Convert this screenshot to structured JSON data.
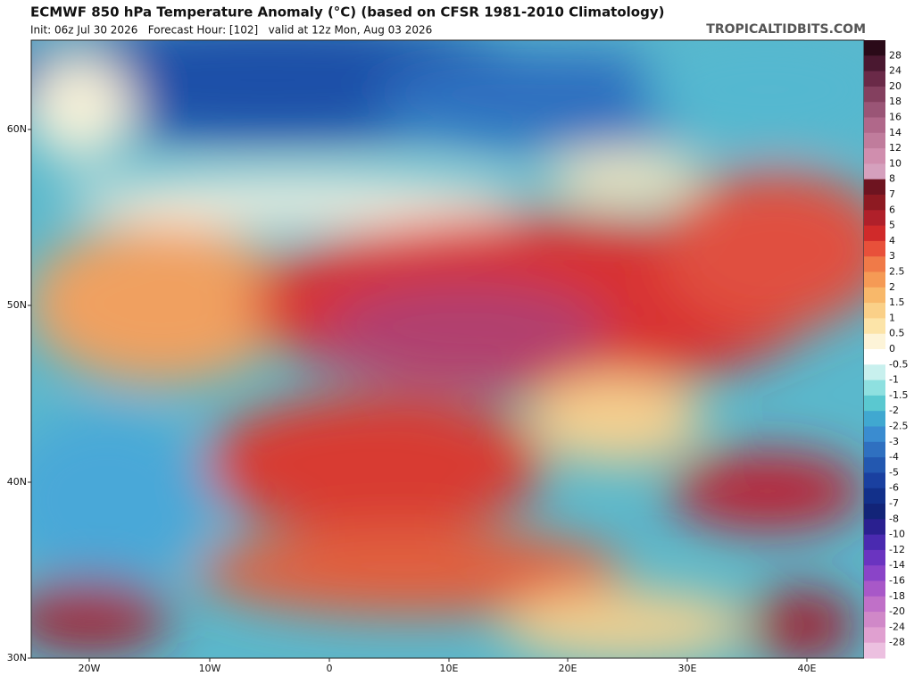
{
  "header": {
    "title": "ECMWF 850 hPa Temperature Anomaly (°C) (based on CFSR 1981-2010 Climatology)",
    "subtitle": "Init: 06z Jul 30 2026   Forecast Hour: [102]   valid at 12z Mon, Aug 03 2026",
    "watermark": "TROPICALTIDBITS.COM"
  },
  "map": {
    "lat_labels": [
      "60N",
      "50N",
      "40N",
      "30N"
    ],
    "lon_labels": [
      "20W",
      "10W",
      "0",
      "10E",
      "20E",
      "30E",
      "40E"
    ]
  },
  "colorbar": {
    "levels": [
      28,
      24,
      20,
      18,
      16,
      14,
      12,
      10,
      8,
      7,
      6,
      5,
      4,
      3,
      2.5,
      2,
      1.5,
      1,
      0.5,
      0,
      -0.5,
      -1,
      -1.5,
      -2,
      -2.5,
      -3,
      -4,
      -5,
      -6,
      -7,
      -8,
      -10,
      -12,
      -14,
      -16,
      -18,
      -20,
      -24,
      -28
    ],
    "colors": [
      "#2a0a18",
      "#4a1830",
      "#6a2a48",
      "#84405f",
      "#9a5576",
      "#b0688a",
      "#c07c9c",
      "#d08eae",
      "#d5a0bd",
      "#6e1420",
      "#8e1a22",
      "#b0202a",
      "#d02a2a",
      "#e8503a",
      "#f07a48",
      "#f59a55",
      "#f8b86a",
      "#fad088",
      "#fce4a8",
      "#fdf4d8",
      "#ffffff",
      "#c8f0ee",
      "#8ee0e0",
      "#5ac8d0",
      "#40a8d0",
      "#3a8cd0",
      "#2f70c0",
      "#2358b0",
      "#1a40a0",
      "#12308a",
      "#122478",
      "#2a2090",
      "#4a2ab0",
      "#6a34c0",
      "#8a44c8",
      "#a858c8",
      "#c070c8",
      "#d088c8",
      "#e0a0d0",
      "#ecc0e0"
    ]
  }
}
